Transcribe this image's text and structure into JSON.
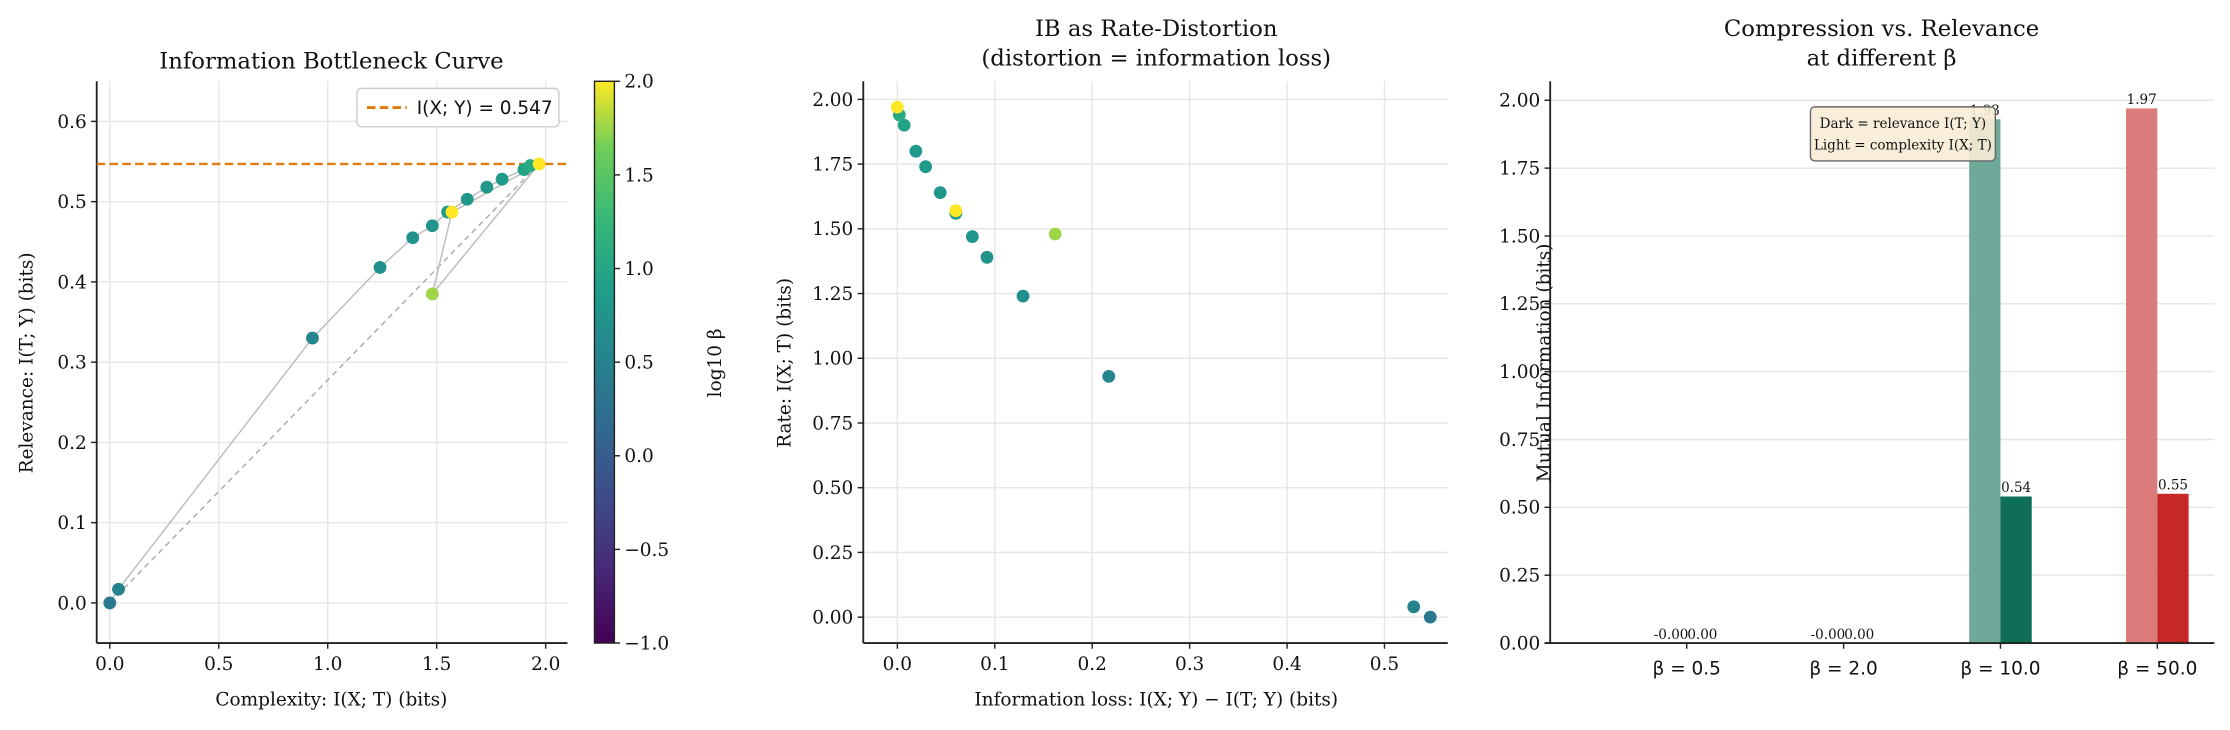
{
  "chart_data": [
    {
      "type": "scatter",
      "title": "Information Bottleneck Curve",
      "xlabel": "Complexity: I(X; T) (bits)",
      "ylabel": "Relevance: I(T; Y) (bits)",
      "xlim": [
        -0.06,
        2.1
      ],
      "ylim": [
        -0.05,
        0.65
      ],
      "xticks": [
        "0.0",
        "0.5",
        "1.0",
        "1.5",
        "2.0"
      ],
      "yticks": [
        "0.0",
        "0.1",
        "0.2",
        "0.3",
        "0.4",
        "0.5",
        "0.6"
      ],
      "grid": true,
      "legend": {
        "position": "top-right",
        "entries": [
          "I(X; Y) = 0.547"
        ]
      },
      "reference_line": {
        "y": 0.547,
        "color": "#e07b10",
        "style": "dashed"
      },
      "colorbar": {
        "label": "log10 β",
        "range": [
          -1.0,
          2.0
        ],
        "ticks": [
          "−1.0",
          "−0.5",
          "0.0",
          "0.5",
          "1.0",
          "1.5",
          "2.0"
        ],
        "colormap": "viridis"
      },
      "points": [
        {
          "x": 0.0,
          "y": 0.0,
          "log10_beta": 0.35
        },
        {
          "x": 0.04,
          "y": 0.017,
          "log10_beta": 0.5
        },
        {
          "x": 0.93,
          "y": 0.33,
          "log10_beta": 0.55
        },
        {
          "x": 1.24,
          "y": 0.418,
          "log10_beta": 0.7
        },
        {
          "x": 1.39,
          "y": 0.455,
          "log10_beta": 0.72
        },
        {
          "x": 1.48,
          "y": 0.47,
          "log10_beta": 0.75
        },
        {
          "x": 1.55,
          "y": 0.487,
          "log10_beta": 0.8
        },
        {
          "x": 1.64,
          "y": 0.503,
          "log10_beta": 0.78
        },
        {
          "x": 1.73,
          "y": 0.518,
          "log10_beta": 0.8
        },
        {
          "x": 1.8,
          "y": 0.528,
          "log10_beta": 0.82
        },
        {
          "x": 1.9,
          "y": 0.54,
          "log10_beta": 0.95
        },
        {
          "x": 1.93,
          "y": 0.545,
          "log10_beta": 1.05
        },
        {
          "x": 1.97,
          "y": 0.547,
          "log10_beta": 2.0
        },
        {
          "x": 1.57,
          "y": 0.487,
          "log10_beta": 2.0
        },
        {
          "x": 1.48,
          "y": 0.385,
          "log10_beta": 1.75
        }
      ]
    },
    {
      "type": "scatter",
      "title": "IB as Rate-Distortion",
      "subtitle": "(distortion = information loss)",
      "xlabel": "Information loss: I(X; Y) − I(T; Y) (bits)",
      "ylabel": "Rate: I(X; T) (bits)",
      "xlim": [
        -0.035,
        0.565
      ],
      "ylim": [
        -0.1,
        2.07
      ],
      "xticks": [
        "0.0",
        "0.1",
        "0.2",
        "0.3",
        "0.4",
        "0.5"
      ],
      "yticks": [
        "0.00",
        "0.25",
        "0.50",
        "0.75",
        "1.00",
        "1.25",
        "1.50",
        "1.75",
        "2.00"
      ],
      "grid": true,
      "points": [
        {
          "x": 0.547,
          "y": 0.0,
          "log10_beta": 0.35
        },
        {
          "x": 0.53,
          "y": 0.04,
          "log10_beta": 0.5
        },
        {
          "x": 0.217,
          "y": 0.93,
          "log10_beta": 0.55
        },
        {
          "x": 0.129,
          "y": 1.24,
          "log10_beta": 0.7
        },
        {
          "x": 0.092,
          "y": 1.39,
          "log10_beta": 0.72
        },
        {
          "x": 0.077,
          "y": 1.47,
          "log10_beta": 0.75
        },
        {
          "x": 0.06,
          "y": 1.56,
          "log10_beta": 0.8
        },
        {
          "x": 0.044,
          "y": 1.64,
          "log10_beta": 0.78
        },
        {
          "x": 0.029,
          "y": 1.74,
          "log10_beta": 0.8
        },
        {
          "x": 0.019,
          "y": 1.8,
          "log10_beta": 0.82
        },
        {
          "x": 0.007,
          "y": 1.9,
          "log10_beta": 0.95
        },
        {
          "x": 0.002,
          "y": 1.94,
          "log10_beta": 1.05
        },
        {
          "x": 0.0,
          "y": 1.97,
          "log10_beta": 2.0
        },
        {
          "x": 0.06,
          "y": 1.57,
          "log10_beta": 2.0
        },
        {
          "x": 0.162,
          "y": 1.48,
          "log10_beta": 1.75
        }
      ]
    },
    {
      "type": "bar",
      "title": "Compression vs. Relevance",
      "subtitle": "at different β",
      "ylabel": "Mutual Information (bits)",
      "ylim": [
        0,
        2.07
      ],
      "categories": [
        "β = 0.5",
        "β = 2.0",
        "β = 10.0",
        "β = 50.0"
      ],
      "yticks": [
        "0.00",
        "0.25",
        "0.50",
        "0.75",
        "1.00",
        "1.25",
        "1.50",
        "1.75",
        "2.00"
      ],
      "grid": "horizontal",
      "series": [
        {
          "name": "Light = complexity I(X; T)",
          "values": [
            -0.0,
            0.0,
            1.93,
            1.97
          ],
          "labels": [
            "-0.00",
            "-0.00",
            "1.93",
            "1.97"
          ],
          "colors": [
            "#6fa99a",
            "#6fa99a",
            "#6fa99a",
            "#dc7b7b"
          ]
        },
        {
          "name": "Dark = relevance I(T; Y)",
          "values": [
            0.0,
            0.0,
            0.54,
            0.55
          ],
          "labels": [
            "0.00",
            "0.00",
            "0.54",
            "0.55"
          ],
          "colors": [
            "#0f6e56",
            "#0f6e56",
            "#0f6e56",
            "#c62828"
          ]
        }
      ],
      "text_box": [
        "Dark = relevance I(T; Y)",
        "Light = complexity I(X; T)"
      ]
    }
  ]
}
